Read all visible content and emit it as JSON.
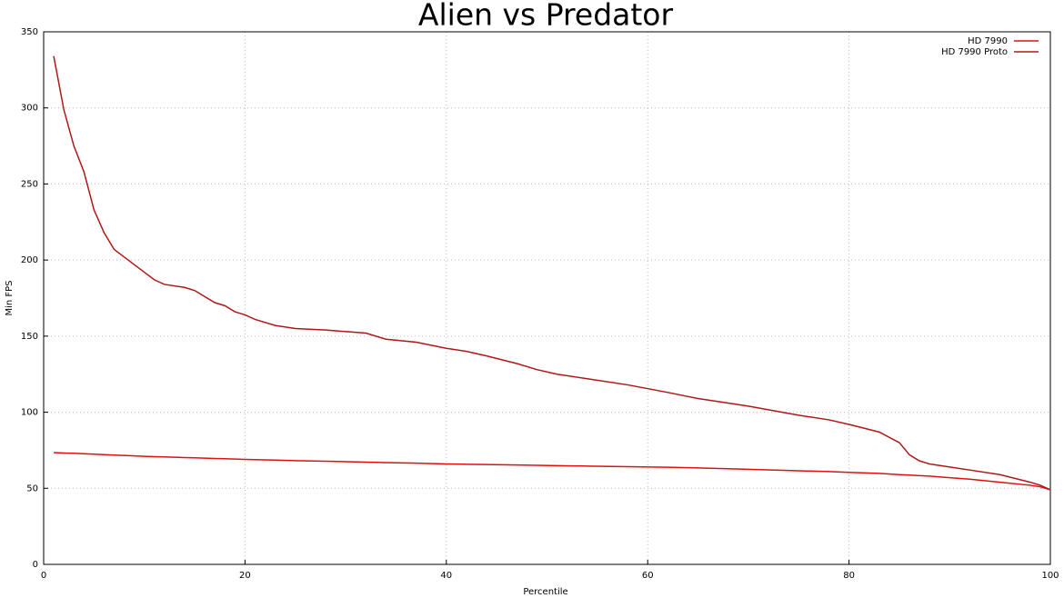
{
  "chart_data": {
    "type": "line",
    "title": "Alien vs Predator",
    "x_label": "Percentile",
    "y_label": "Min FPS",
    "x": [
      1,
      2,
      3,
      4,
      5,
      6,
      7,
      8,
      10,
      11,
      12,
      14,
      15,
      17,
      18,
      19,
      20,
      21,
      23,
      25,
      28,
      32,
      34,
      37,
      40,
      42,
      44,
      47,
      49,
      51,
      54,
      58,
      62,
      65,
      70,
      75,
      78,
      80,
      83,
      85,
      86,
      87,
      88,
      90,
      92,
      95,
      98,
      99,
      100
    ],
    "series": [
      {
        "name": "HD 7990",
        "color": "#e01010",
        "values": [
          73.5,
          73.2,
          73,
          72.7,
          72.4,
          72.1,
          71.8,
          71.6,
          71,
          70.8,
          70.6,
          70.2,
          70,
          69.6,
          69.4,
          69.2,
          69,
          68.8,
          68.5,
          68.2,
          67.8,
          67.2,
          66.9,
          66.5,
          66,
          65.8,
          65.6,
          65.3,
          65.1,
          64.9,
          64.6,
          64.2,
          63.8,
          63.4,
          62.5,
          61.5,
          61,
          60.5,
          59.8,
          59,
          58.7,
          58.3,
          58,
          57,
          56,
          54,
          52,
          51,
          49
        ]
      },
      {
        "name": "HD 7990 Proto",
        "color": "#b01818",
        "values": [
          334,
          299,
          275,
          258,
          233,
          218,
          207,
          202,
          192,
          187,
          184,
          182,
          180,
          172,
          170,
          166,
          164,
          161,
          157,
          155,
          154,
          152,
          148,
          146,
          142,
          140,
          137,
          132,
          128,
          125,
          122,
          118,
          113,
          109,
          104,
          98,
          95,
          92,
          87,
          80,
          72,
          68,
          66,
          64,
          62,
          59,
          54,
          52,
          49
        ]
      }
    ],
    "xlim": [
      0,
      100
    ],
    "xticks": [
      0,
      20,
      40,
      60,
      80,
      100
    ],
    "ylim": [
      0,
      350
    ],
    "yticks": [
      0,
      50,
      100,
      150,
      200,
      250,
      300,
      350
    ],
    "grid": true,
    "legend": "top-right"
  }
}
